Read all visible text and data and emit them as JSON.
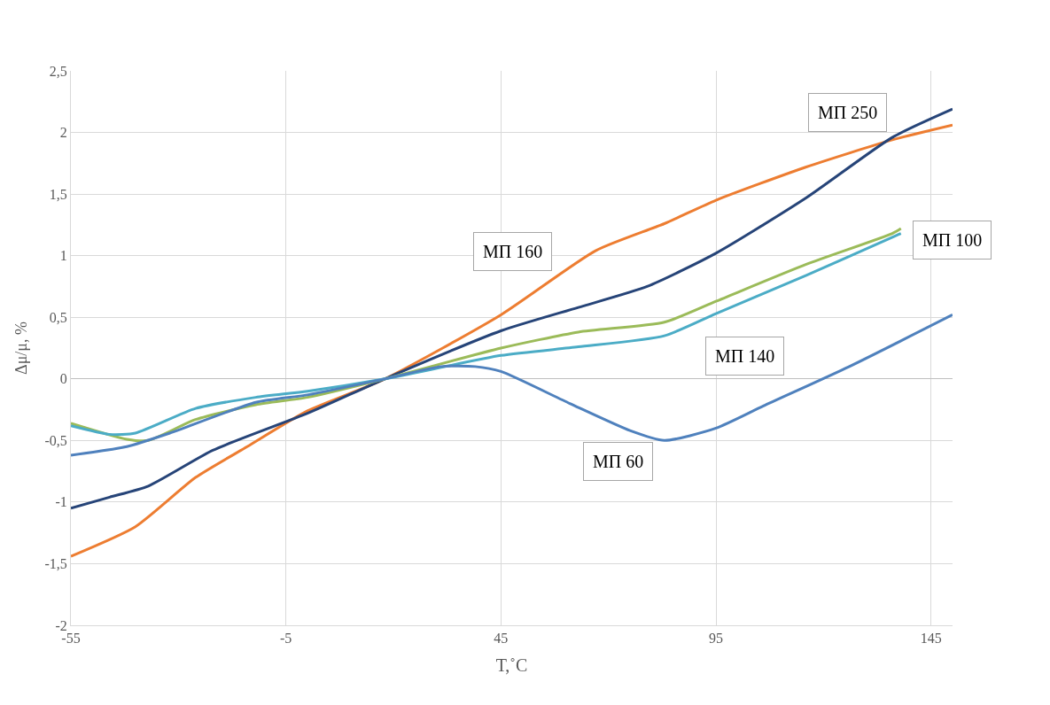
{
  "chart_data": {
    "type": "line",
    "xlabel": "T,˚C",
    "ylabel": "Δμ/μ, %",
    "xlim": [
      -55,
      150
    ],
    "ylim": [
      -2,
      2.5
    ],
    "xticks": [
      -55,
      -5,
      45,
      95,
      145
    ],
    "yticks": [
      {
        "value": -2,
        "label": "-2"
      },
      {
        "value": -1.5,
        "label": "-1,5"
      },
      {
        "value": -1,
        "label": "-1"
      },
      {
        "value": -0.5,
        "label": "-0,5"
      },
      {
        "value": 0,
        "label": "0"
      },
      {
        "value": 0.5,
        "label": "0,5"
      },
      {
        "value": 1,
        "label": "1"
      },
      {
        "value": 1.5,
        "label": "1,5"
      },
      {
        "value": 2,
        "label": "2"
      },
      {
        "value": 2.5,
        "label": "2,5"
      }
    ],
    "grid": true,
    "marker": "none",
    "line_style": "solid",
    "series": [
      {
        "color": "#ed7d31",
        "x": [
          -55,
          -40,
          -26,
          -14,
          0,
          18,
          45,
          67,
          83,
          95,
          116,
          136,
          150
        ],
        "values": [
          -1.44,
          -1.2,
          -0.8,
          -0.55,
          -0.26,
          0,
          0.52,
          1.04,
          1.26,
          1.45,
          1.72,
          1.94,
          2.06
        ]
      },
      {
        "color": "#264478",
        "x": [
          -55,
          -46,
          -37,
          -22,
          0,
          18,
          45,
          63,
          79,
          95,
          116,
          136,
          150
        ],
        "values": [
          -1.05,
          -0.96,
          -0.87,
          -0.58,
          -0.28,
          0,
          0.39,
          0.58,
          0.75,
          1.02,
          1.47,
          1.96,
          2.19
        ]
      },
      {
        "color": "#9bbb59",
        "x": [
          -55,
          -42,
          -37,
          -26,
          -12,
          0,
          18,
          45,
          63,
          83,
          95,
          116,
          136,
          138
        ],
        "values": [
          -0.36,
          -0.49,
          -0.5,
          -0.33,
          -0.21,
          -0.15,
          0,
          0.25,
          0.38,
          0.46,
          0.63,
          0.93,
          1.18,
          1.22
        ]
      },
      {
        "color": "#4bacc6",
        "x": [
          -55,
          -46,
          -40,
          -26,
          -12,
          0,
          18,
          45,
          63,
          83,
          95,
          116,
          136,
          138
        ],
        "values": [
          -0.38,
          -0.45,
          -0.44,
          -0.24,
          -0.15,
          -0.1,
          0,
          0.19,
          0.26,
          0.35,
          0.53,
          0.84,
          1.15,
          1.18
        ]
      },
      {
        "color": "#4f81bd",
        "x": [
          -55,
          -42,
          -32,
          -12,
          0,
          18,
          31,
          39,
          45,
          61,
          75,
          83,
          95,
          106,
          126,
          150
        ],
        "values": [
          -0.62,
          -0.55,
          -0.44,
          -0.19,
          -0.13,
          0,
          0.1,
          0.1,
          0.06,
          -0.2,
          -0.42,
          -0.5,
          -0.4,
          -0.22,
          0.1,
          0.52
        ]
      }
    ],
    "annotations": [
      "МП 250",
      "МП 160",
      "МП 100",
      "МП 140",
      "МП 60"
    ]
  }
}
